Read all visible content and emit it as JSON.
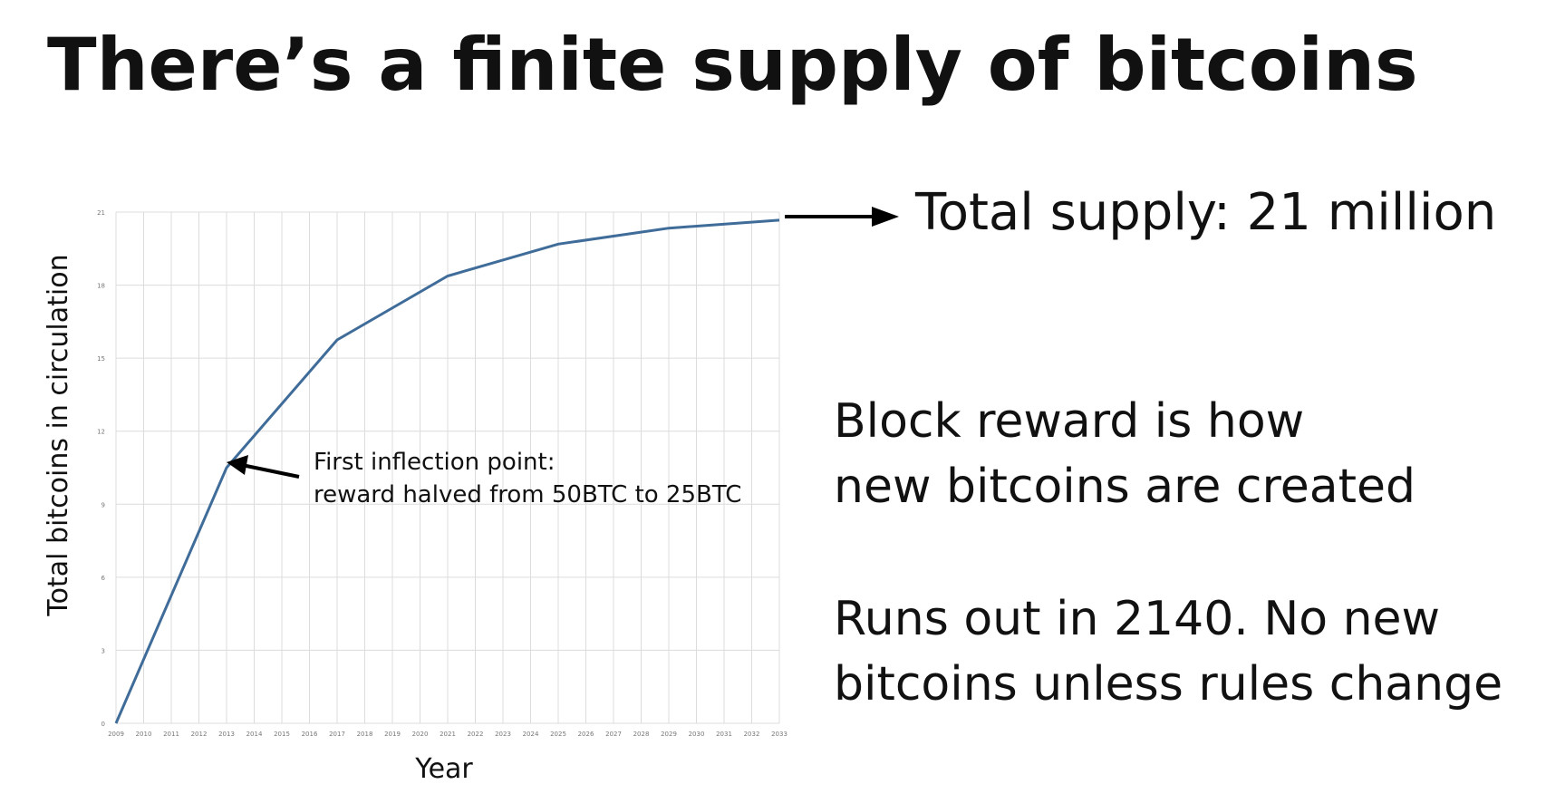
{
  "slide": {
    "title": "There’s a finite supply of bitcoins",
    "supply_callout": "Total supply: 21 million",
    "note1_line1": "Block reward is how",
    "note1_line2": "new bitcoins are created",
    "note2_line1": "Runs out in 2140. No new",
    "note2_line2": "bitcoins unless rules change"
  },
  "colors": {
    "line": "#3f6c99",
    "grid": "#dcdcdc",
    "text": "#111111"
  },
  "chart_data": {
    "type": "line",
    "title": "",
    "xlabel": "Year",
    "ylabel": "Total bitcoins in circulation",
    "xlim": [
      2009,
      2033
    ],
    "ylim": [
      0,
      21
    ],
    "x_ticks": [
      2009,
      2010,
      2011,
      2012,
      2013,
      2014,
      2015,
      2016,
      2017,
      2018,
      2019,
      2020,
      2021,
      2022,
      2023,
      2024,
      2025,
      2026,
      2027,
      2028,
      2029,
      2030,
      2031,
      2032,
      2033
    ],
    "y_ticks": [
      0,
      3,
      6,
      9,
      12,
      15,
      18,
      21
    ],
    "grid": true,
    "series": [
      {
        "x": [
          2009,
          2013,
          2017,
          2021,
          2025,
          2029,
          2033
        ],
        "y": [
          0,
          10.5,
          15.75,
          18.375,
          19.6875,
          20.34,
          20.67
        ]
      }
    ],
    "annotations": [
      {
        "text_line1": "First inflection point:",
        "text_line2": "reward halved from 50BTC to 25BTC",
        "x": 2013,
        "y": 10.5
      }
    ]
  }
}
